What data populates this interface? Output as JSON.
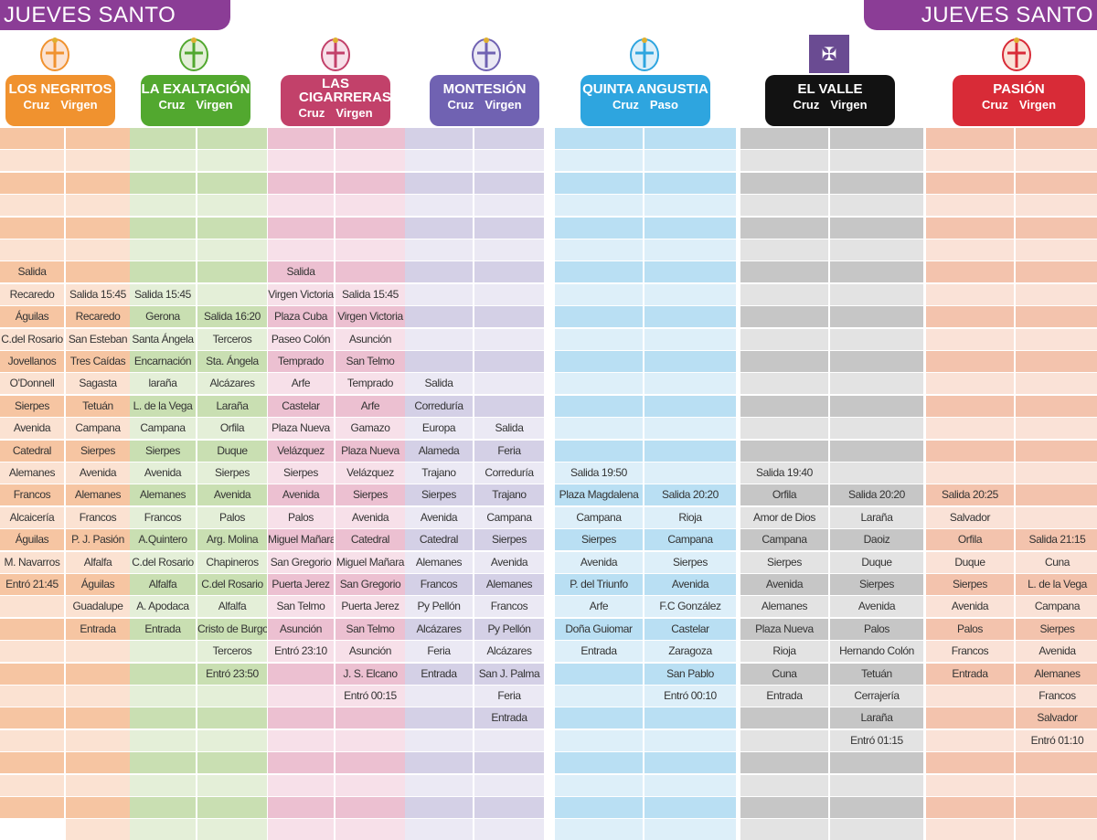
{
  "banner_left": "JUEVES SANTO",
  "banner_right": "JUEVES SANTO",
  "groups": [
    {
      "key": "negritos",
      "name": "LOS NEGRITOS",
      "color": "#f0922f",
      "dark": "#f6c5a2",
      "light": "#fbe2d2",
      "crest": "crest-cross-icon",
      "subs": [
        "Cruz",
        "Virgen"
      ],
      "col_a": [
        "",
        "",
        "",
        "",
        "",
        "",
        "Salida",
        "Recaredo",
        "Águilas",
        "C.del Rosario",
        "Jovellanos",
        "O'Donnell",
        "Sierpes",
        "Avenida",
        "Catedral",
        "Alemanes",
        "Francos",
        "Alcaicería",
        "Águilas",
        "M. Navarros",
        "Entró 21:45",
        "",
        "",
        "",
        "",
        "",
        "",
        "",
        "",
        "",
        ""
      ],
      "col_b": [
        "",
        "",
        "",
        "",
        "",
        "",
        "",
        "Salida 15:45",
        "Recaredo",
        "San Esteban",
        "Tres Caídas",
        "Sagasta",
        "Tetuán",
        "Campana",
        "Sierpes",
        "Avenida",
        "Alemanes",
        "Francos",
        "P. J. Pasión",
        "Alfalfa",
        "Águilas",
        "Guadalupe",
        "Entrada",
        "",
        "",
        "",
        "",
        "",
        "",
        "",
        "",
        ""
      ]
    },
    {
      "key": "exaltacion",
      "name": "LA EXALTACIÓN",
      "color": "#52a82f",
      "dark": "#c9dfb2",
      "light": "#e4efd8",
      "crest": "crest-shield-icon",
      "subs": [
        "Cruz",
        "Virgen"
      ],
      "col_a": [
        "",
        "",
        "",
        "",
        "",
        "",
        "",
        "Salida 15:45",
        "Gerona",
        "Santa Ángela",
        "Encarnación",
        "laraña",
        "L. de la Vega",
        "Campana",
        "Sierpes",
        "Avenida",
        "Alemanes",
        "Francos",
        "A.Quintero",
        "C.del Rosario",
        "Alfalfa",
        "A. Apodaca",
        "Entrada",
        "",
        "",
        "",
        "",
        "",
        "",
        "",
        "",
        ""
      ],
      "col_b": [
        "",
        "",
        "",
        "",
        "",
        "",
        "",
        "",
        "Salida 16:20",
        "Terceros",
        "Sta. Ángela",
        "Alcázares",
        "Laraña",
        "Orfila",
        "Duque",
        "Sierpes",
        "Avenida",
        "Palos",
        "Arg. Molina",
        "Chapineros",
        "C.del Rosario",
        "Alfalfa",
        "Cristo de Burgos",
        "Terceros",
        "Entró 23:50",
        "",
        "",
        "",
        "",
        "",
        "",
        ""
      ]
    },
    {
      "key": "cigarreras",
      "name": "LAS CIGARRERAS",
      "color": "#c2416a",
      "dark": "#ecc0d1",
      "light": "#f7e0e9",
      "crest": "crest-crown-icon",
      "subs": [
        "Cruz",
        "Virgen"
      ],
      "col_a": [
        "",
        "",
        "",
        "",
        "",
        "",
        "Salida",
        "Virgen Victoria",
        "Plaza Cuba",
        "Paseo Colón",
        "Temprado",
        "Arfe",
        "Castelar",
        "Plaza Nueva",
        "Velázquez",
        "Sierpes",
        "Avenida",
        "Palos",
        "Miguel Mañara",
        "San Gregorio",
        "Puerta Jerez",
        "San Telmo",
        "Asunción",
        "Entró 23:10",
        "",
        "",
        "",
        "",
        "",
        "",
        "",
        ""
      ],
      "col_b": [
        "",
        "",
        "",
        "",
        "",
        "",
        "",
        "Salida 15:45",
        "Virgen Victoria",
        "Asunción",
        "San Telmo",
        "Temprado",
        "Arfe",
        "Gamazo",
        "Plaza Nueva",
        "Velázquez",
        "Sierpes",
        "Avenida",
        "Catedral",
        "Miguel Mañara",
        "San Gregorio",
        "Puerta Jerez",
        "San Telmo",
        "Asunción",
        "J. S. Elcano",
        "Entró 00:15",
        "",
        "",
        "",
        "",
        "",
        ""
      ]
    },
    {
      "key": "montesion",
      "name": "MONTESIÓN",
      "color": "#7062b2",
      "dark": "#d4d0e6",
      "light": "#ebe9f4",
      "crest": "crest-wreath-icon",
      "subs": [
        "Cruz",
        "Virgen"
      ],
      "col_a": [
        "",
        "",
        "",
        "",
        "",
        "",
        "",
        "",
        "",
        "",
        "",
        "Salida",
        "Correduría",
        "Europa",
        "Alameda",
        "Trajano",
        "Sierpes",
        "Avenida",
        "Catedral",
        "Alemanes",
        "Francos",
        "Py Pellón",
        "Alcázares",
        "Feria",
        "Entrada",
        "",
        "",
        "",
        "",
        "",
        "",
        ""
      ],
      "col_b": [
        "",
        "",
        "",
        "",
        "",
        "",
        "",
        "",
        "",
        "",
        "",
        "",
        "",
        "Salida",
        "Feria",
        "Correduría",
        "Trajano",
        "Campana",
        "Sierpes",
        "Avenida",
        "Alemanes",
        "Francos",
        "Py Pellón",
        "Alcázares",
        "San J. Palma",
        "Feria",
        "Entrada",
        "",
        "",
        "",
        "",
        ""
      ]
    },
    {
      "key": "quinta",
      "name": "QUINTA ANGUSTIA",
      "color": "#2ea5df",
      "dark": "#b9dff3",
      "light": "#ddeff9",
      "crest": "crest-ring-icon",
      "subs": [
        "Cruz",
        "Paso"
      ],
      "col_a": [
        "",
        "",
        "",
        "",
        "",
        "",
        "",
        "",
        "",
        "",
        "",
        "",
        "",
        "",
        "",
        "Salida 19:50",
        "Plaza Magdalena",
        "Campana",
        "Sierpes",
        "Avenida",
        "P. del Triunfo",
        "Arfe",
        "Doña Guiomar",
        "Entrada",
        "",
        "",
        "",
        "",
        "",
        "",
        "",
        ""
      ],
      "col_b": [
        "",
        "",
        "",
        "",
        "",
        "",
        "",
        "",
        "",
        "",
        "",
        "",
        "",
        "",
        "",
        "",
        "Salida 20:20",
        "Rioja",
        "Campana",
        "Sierpes",
        "Avenida",
        "F.C González",
        "Castelar",
        "Zaragoza",
        "San Pablo",
        "Entró 00:10",
        "",
        "",
        "",
        "",
        "",
        ""
      ]
    },
    {
      "key": "valle",
      "name": "EL VALLE",
      "color": "#121212",
      "dark": "#c6c6c6",
      "light": "#e3e3e3",
      "crest": "crest-square-icon",
      "subs": [
        "Cruz",
        "Virgen"
      ],
      "col_a": [
        "",
        "",
        "",
        "",
        "",
        "",
        "",
        "",
        "",
        "",
        "",
        "",
        "",
        "",
        "",
        "Salida 19:40",
        "Orfila",
        "Amor de Dios",
        "Campana",
        "Sierpes",
        "Avenida",
        "Alemanes",
        "Plaza Nueva",
        "Rioja",
        "Cuna",
        "Entrada",
        "",
        "",
        "",
        "",
        "",
        ""
      ],
      "col_b": [
        "",
        "",
        "",
        "",
        "",
        "",
        "",
        "",
        "",
        "",
        "",
        "",
        "",
        "",
        "",
        "",
        "Salida 20:20",
        "Laraña",
        "Daoiz",
        "Duque",
        "Sierpes",
        "Avenida",
        "Palos",
        "Hernando Colón",
        "Tetuán",
        "Cerrajería",
        "Laraña",
        "Entró 01:15",
        "",
        "",
        "",
        ""
      ]
    },
    {
      "key": "pasion",
      "name": "PASIÓN",
      "color": "#d82b37",
      "dark": "#f3c3ad",
      "light": "#fae2d7",
      "crest": "crest-tower-icon",
      "subs": [
        "Cruz",
        "Virgen"
      ],
      "col_a": [
        "",
        "",
        "",
        "",
        "",
        "",
        "",
        "",
        "",
        "",
        "",
        "",
        "",
        "",
        "",
        "",
        "Salida 20:25",
        "Salvador",
        "Orfila",
        "Duque",
        "Sierpes",
        "Avenida",
        "Palos",
        "Francos",
        "Entrada",
        "",
        "",
        "",
        "",
        "",
        "",
        ""
      ],
      "col_b": [
        "",
        "",
        "",
        "",
        "",
        "",
        "",
        "",
        "",
        "",
        "",
        "",
        "",
        "",
        "",
        "",
        "",
        "",
        "Salida 21:15",
        "Cuna",
        "L. de la Vega",
        "Campana",
        "Sierpes",
        "Avenida",
        "Alemanes",
        "Francos",
        "Salvador",
        "Entró 01:10",
        "",
        "",
        "",
        ""
      ]
    }
  ]
}
